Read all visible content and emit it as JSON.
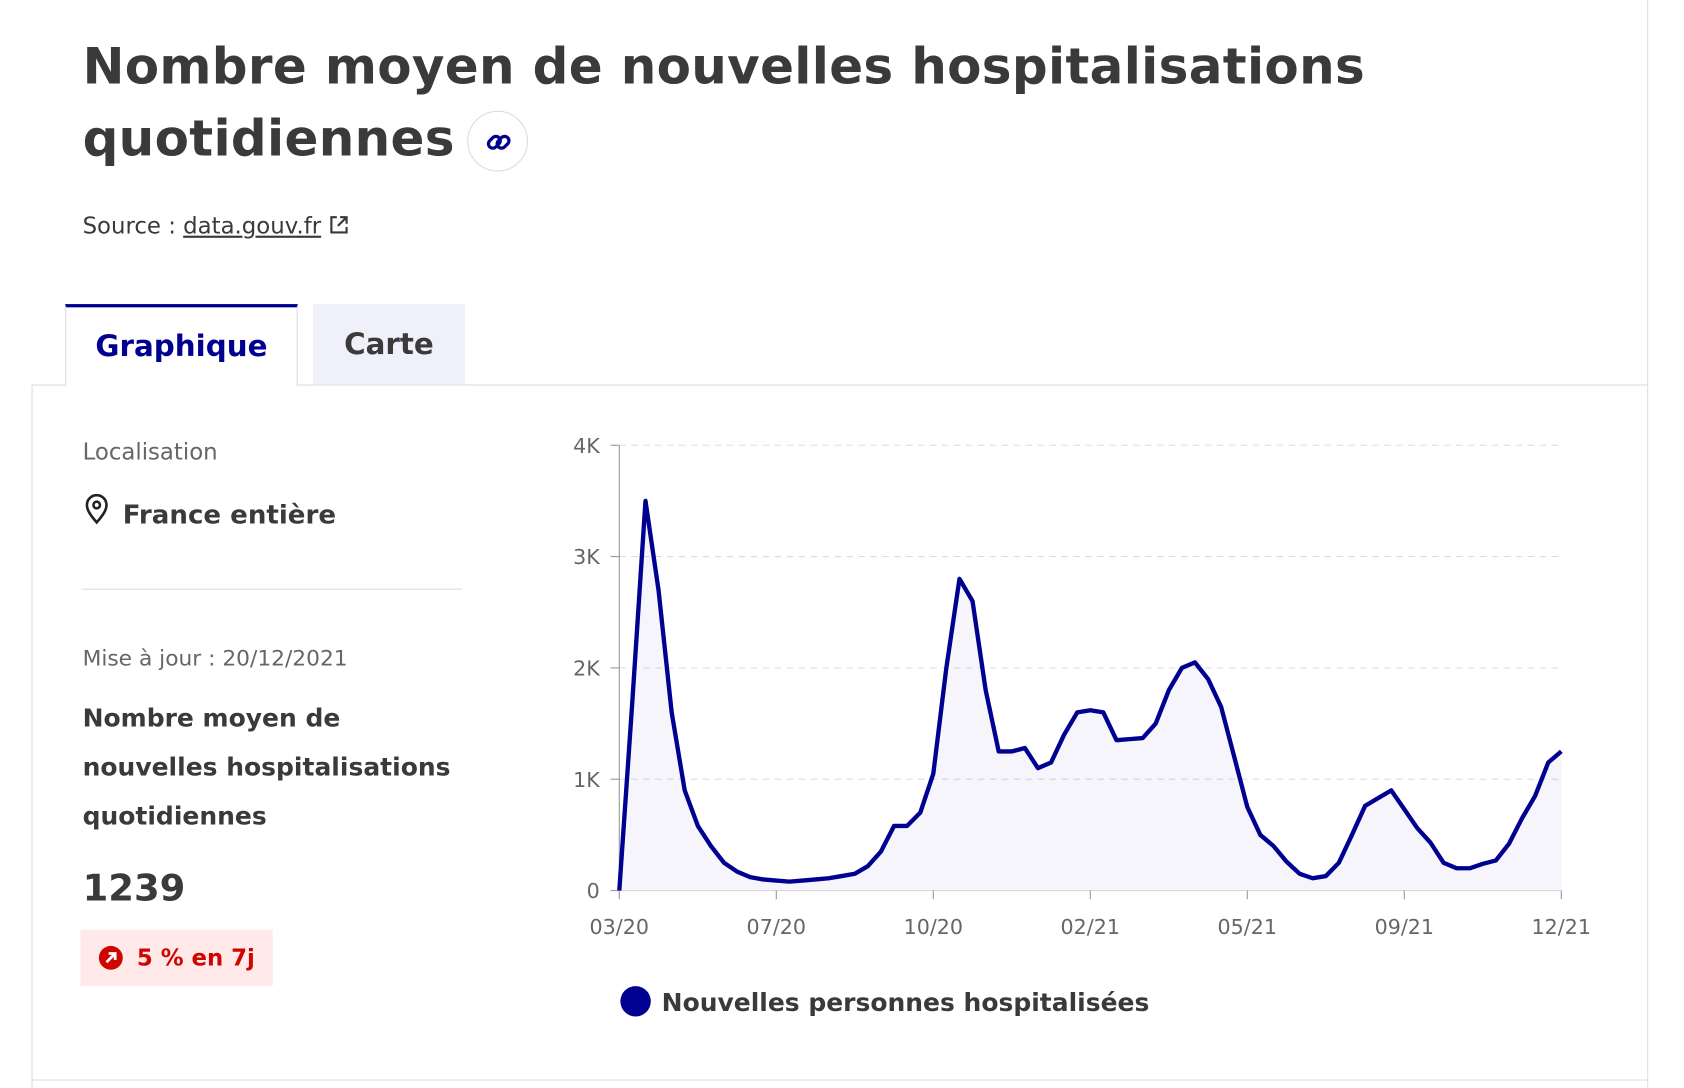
{
  "header": {
    "title": "Nombre moyen de nouvelles hospitalisations quotidiennes",
    "source_label": "Source :",
    "source_link": "data.gouv.fr"
  },
  "tabs": [
    "Graphique",
    "Carte"
  ],
  "sidebar": {
    "location_label": "Localisation",
    "location": "France entière",
    "updated": "Mise à jour : 20/12/2021",
    "indicator": "Nombre moyen de nouvelles hospitalisations quotidiennes",
    "value": "1239",
    "trend": "5 % en 7j"
  },
  "chart_data": {
    "type": "line",
    "categories": [
      "03/20",
      null,
      null,
      null,
      null,
      null,
      null,
      null,
      null,
      null,
      null,
      null,
      "07/20",
      null,
      null,
      null,
      null,
      null,
      null,
      null,
      null,
      null,
      null,
      null,
      "10/20",
      null,
      null,
      null,
      null,
      null,
      null,
      null,
      null,
      null,
      null,
      null,
      "02/21",
      null,
      null,
      null,
      null,
      null,
      null,
      null,
      null,
      null,
      null,
      null,
      "05/21",
      null,
      null,
      null,
      null,
      null,
      null,
      null,
      null,
      null,
      null,
      null,
      "09/21",
      null,
      null,
      null,
      null,
      null,
      null,
      null,
      null,
      null,
      null,
      null,
      "12/21"
    ],
    "series": [
      {
        "name": "Nouvelles personnes hospitalisées",
        "color": "#000091",
        "values": [
          0,
          1700,
          3500,
          2700,
          1600,
          900,
          580,
          400,
          250,
          170,
          120,
          100,
          90,
          80,
          90,
          100,
          110,
          130,
          150,
          220,
          350,
          580,
          580,
          700,
          1050,
          2000,
          2800,
          2600,
          1800,
          1250,
          1250,
          1280,
          1100,
          1150,
          1400,
          1600,
          1620,
          1600,
          1350,
          1360,
          1370,
          1500,
          1800,
          2000,
          2050,
          1900,
          1650,
          1200,
          750,
          500,
          400,
          260,
          150,
          110,
          130,
          250,
          500,
          760,
          830,
          900,
          730,
          560,
          430,
          250,
          200,
          200,
          240,
          270,
          420,
          650,
          850,
          1150,
          1250
        ]
      }
    ],
    "ylim": [
      0,
      4000
    ],
    "yticks": [
      0,
      {
        "value": 1000,
        "label": "1K"
      },
      {
        "value": 2000,
        "label": "2K"
      },
      {
        "value": 3000,
        "label": "3K"
      },
      {
        "value": 4000,
        "label": "4K"
      }
    ],
    "grid": true
  }
}
